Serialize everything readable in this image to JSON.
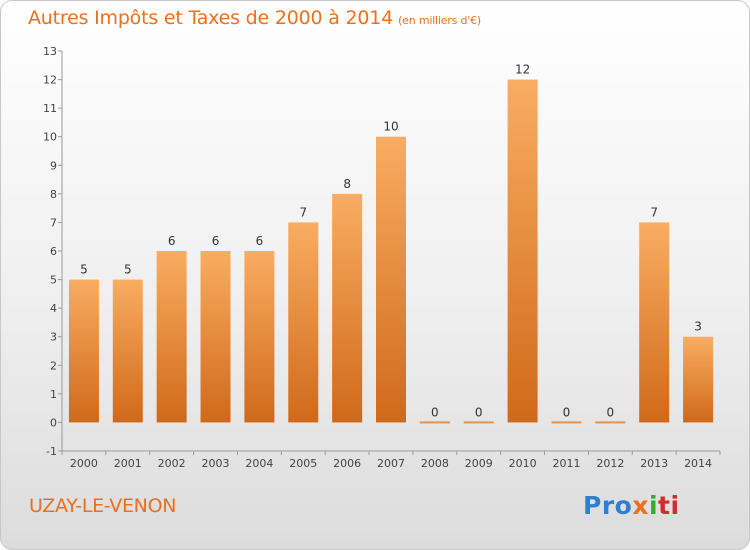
{
  "title": "Autres Impôts et Taxes de 2000 à 2014",
  "subtitle": "(en milliers d'€)",
  "commune": "UZAY-LE-VENON",
  "logo": {
    "p1": "Pro",
    "p2": "x",
    "p3": "i",
    "p4": "ti",
    "icon": "proxiti-logo"
  },
  "colors": {
    "accent": "#e8701e",
    "bar_light": "#f7a85a",
    "bar_dark": "#d46b1a"
  },
  "chart_data": {
    "type": "bar",
    "title": "Autres Impôts et Taxes de 2000 à 2014",
    "subtitle": "(en milliers d'€)",
    "xlabel": "",
    "ylabel": "",
    "categories": [
      "2000",
      "2001",
      "2002",
      "2003",
      "2004",
      "2005",
      "2006",
      "2007",
      "2008",
      "2009",
      "2010",
      "2011",
      "2012",
      "2013",
      "2014"
    ],
    "values": [
      5,
      5,
      6,
      6,
      6,
      7,
      8,
      10,
      0,
      0,
      12,
      0,
      0,
      7,
      3
    ],
    "ylim": [
      -1,
      13
    ],
    "yticks": [
      -1,
      0,
      1,
      2,
      3,
      4,
      5,
      6,
      7,
      8,
      9,
      10,
      11,
      12,
      13
    ],
    "grid": false,
    "legend": "none"
  }
}
